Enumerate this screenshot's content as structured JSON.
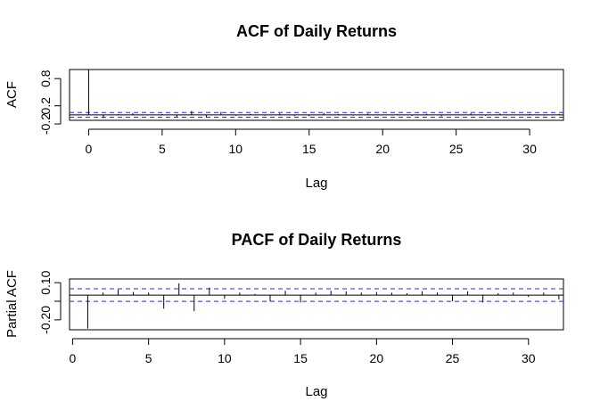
{
  "chart_data": [
    {
      "type": "bar",
      "title": "ACF of Daily Returns",
      "xlabel": "Lag",
      "ylabel": "ACF",
      "xlim": [
        -1.3,
        32.3
      ],
      "ylim": [
        -0.12,
        1.0
      ],
      "xticks": [
        0,
        5,
        10,
        15,
        20,
        25,
        30
      ],
      "yticks": [
        -0.2,
        0.2,
        0.8
      ],
      "ytick_labels": [
        "-0.2",
        "0.2",
        "0.8"
      ],
      "confidence_band": 0.051,
      "zero_line": 0,
      "lag_start": 0,
      "values": [
        1.0,
        -0.07,
        0.015,
        0.04,
        -0.01,
        0.02,
        -0.04,
        0.085,
        -0.06,
        0.065,
        -0.02,
        0.02,
        -0.015,
        0.03,
        -0.02,
        -0.03,
        0.045,
        0.02,
        -0.015,
        0.03,
        -0.01,
        0.015,
        -0.02,
        0.025,
        -0.03,
        0.01,
        0.035,
        -0.02,
        0.03,
        -0.01,
        0.02,
        -0.015,
        0.02
      ]
    },
    {
      "type": "bar",
      "title": "PACF of Daily Returns",
      "xlabel": "Lag",
      "ylabel": "Partial ACF",
      "xlim": [
        -0.2,
        32.3
      ],
      "ylim": [
        -0.28,
        0.13
      ],
      "xticks": [
        0,
        5,
        10,
        15,
        20,
        25,
        30
      ],
      "yticks": [
        -0.2,
        -0.05,
        0.1
      ],
      "ytick_labels": [
        "-0.20",
        "",
        "0.10"
      ],
      "confidence_band": 0.051,
      "zero_line": 0,
      "lag_start": 1,
      "values": [
        -0.27,
        0.02,
        0.045,
        0.025,
        0.02,
        -0.11,
        0.095,
        -0.13,
        0.06,
        -0.03,
        0.02,
        0.01,
        -0.05,
        0.035,
        -0.06,
        0.02,
        0.035,
        0.03,
        0.02,
        0.025,
        0.02,
        0.015,
        0.03,
        0.02,
        -0.05,
        0.03,
        -0.06,
        0.015,
        0.02,
        -0.015,
        0.02,
        -0.035
      ]
    }
  ]
}
